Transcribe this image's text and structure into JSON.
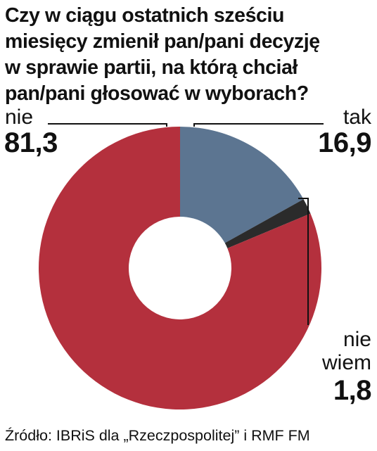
{
  "title_lines": [
    "Czy w ciągu ostatnich sześciu",
    "miesięcy zmienił pan/pani decyzję",
    "w sprawie partii, na którą chciał",
    "pan/pani głosować w wyborach?"
  ],
  "chart_data": {
    "type": "pie",
    "variant": "donut",
    "slices": [
      {
        "label": "tak",
        "value": 16.9,
        "display": "16,9",
        "color": "#5c7591"
      },
      {
        "label": "nie wiem",
        "value": 1.8,
        "display": "1,8",
        "color": "#2b2b2b"
      },
      {
        "label": "nie",
        "value": 81.3,
        "display": "81,3",
        "color": "#b4303d"
      }
    ]
  },
  "labels": {
    "nie": "nie",
    "nie_value": "81,3",
    "tak": "tak",
    "tak_value": "16,9",
    "nie_wiem_line1": "nie",
    "nie_wiem_line2": "wiem",
    "nie_wiem_value": "1,8"
  },
  "source": "Źródło: IBRiS dla „Rzeczpospolitej” i RMF FM"
}
